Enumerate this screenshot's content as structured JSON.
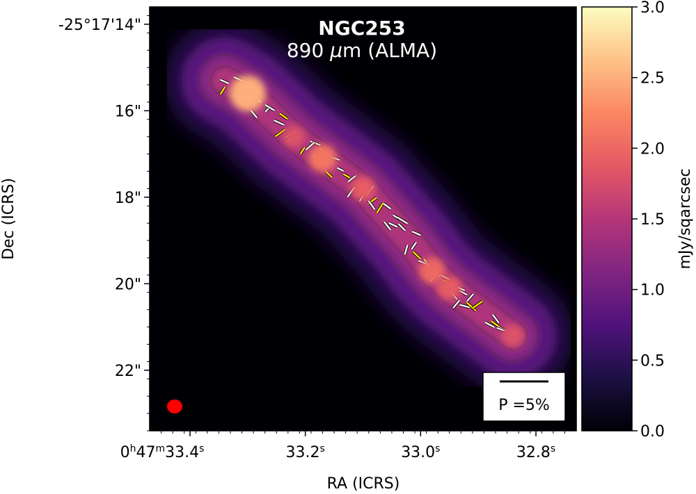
{
  "chart_data": {
    "type": "heatmap",
    "title": "NGC253",
    "subtitle": "890 μm (ALMA)",
    "subtitle_prefix": "890 ",
    "subtitle_mu": "μ",
    "subtitle_rest": "m (ALMA)",
    "xlabel": "RA (ICRS)",
    "ylabel": "Dec (ICRS)",
    "x_ticks": [
      {
        "label_main": "0",
        "sup1": "h",
        "mid": "47",
        "sup2": "m",
        "label": "33.4",
        "sup3": "s",
        "ra_s": 33.4
      },
      {
        "label": "33.2",
        "sup3": "s",
        "ra_s": 33.2
      },
      {
        "label": "33.0",
        "sup3": "s",
        "ra_s": 33.0
      },
      {
        "label": "32.8",
        "sup3": "s",
        "ra_s": 32.8
      }
    ],
    "y_ticks": [
      {
        "label": "-25°17'14\"",
        "dec_arcsec": 14
      },
      {
        "label": "16\"",
        "dec_arcsec": 16
      },
      {
        "label": "18\"",
        "dec_arcsec": 18
      },
      {
        "label": "20\"",
        "dec_arcsec": 20
      },
      {
        "label": "22\"",
        "dec_arcsec": 22
      }
    ],
    "xlim_ra_s": [
      33.47,
      32.73
    ],
    "ylim_dec_arcsec": [
      13.6,
      23.4
    ],
    "colorbar": {
      "label": "mJy/sqarcsec",
      "min": 0.0,
      "max": 3.0,
      "ticks": [
        "0.0",
        "0.5",
        "1.0",
        "1.5",
        "2.0",
        "2.5",
        "3.0"
      ],
      "colormap": "magma",
      "colors": [
        "#000004",
        "#1c1044",
        "#4f127b",
        "#812581",
        "#b5367a",
        "#e55964",
        "#fb8761",
        "#fec287",
        "#fcfdbf"
      ]
    },
    "emission_ridge": [
      {
        "ra_s": 33.34,
        "dec": 15.3,
        "value": 1.7
      },
      {
        "ra_s": 33.3,
        "dec": 15.6,
        "value": 2.5
      },
      {
        "ra_s": 33.22,
        "dec": 16.6,
        "value": 1.8
      },
      {
        "ra_s": 33.17,
        "dec": 17.1,
        "value": 2.1
      },
      {
        "ra_s": 33.1,
        "dec": 17.8,
        "value": 1.9
      },
      {
        "ra_s": 33.02,
        "dec": 19.0,
        "value": 1.6
      },
      {
        "ra_s": 32.98,
        "dec": 19.7,
        "value": 2.0
      },
      {
        "ra_s": 32.95,
        "dec": 20.1,
        "value": 1.9
      },
      {
        "ra_s": 32.84,
        "dec": 21.2,
        "value": 1.8
      }
    ],
    "contour_levels": [
      0.5,
      1.0,
      1.5
    ],
    "polarization_legend": "P =5%",
    "beam_color": "#ff0000",
    "vector_colors": [
      "#ffffff",
      "#ffe600"
    ]
  }
}
